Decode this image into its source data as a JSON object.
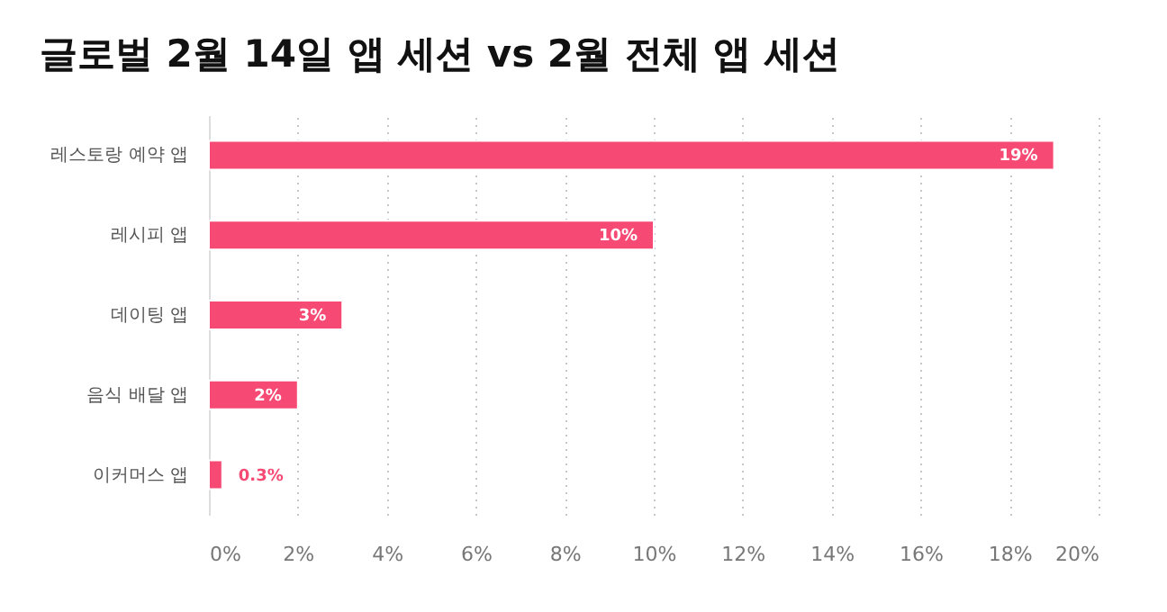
{
  "chart_data": {
    "type": "bar",
    "orientation": "horizontal",
    "title": "글로벌 2월 14일 앱 세션 vs 2월 전체 앱 세션",
    "categories": [
      "레스토랑 예약 앱",
      "레시피 앱",
      "데이팅 앱",
      "음식 배달 앱",
      "이커머스 앱"
    ],
    "values": [
      19,
      10,
      3,
      2,
      0.3
    ],
    "value_labels": [
      "19%",
      "10%",
      "3%",
      "2%",
      "0.3%"
    ],
    "color": "#f64a74",
    "xlim": [
      0,
      20
    ],
    "xticks": [
      {
        "value": 0,
        "label": "0%"
      },
      {
        "value": 2,
        "label": "2%"
      },
      {
        "value": 4,
        "label": "4%"
      },
      {
        "value": 6,
        "label": "6%"
      },
      {
        "value": 8,
        "label": "8%"
      },
      {
        "value": 10,
        "label": "10%"
      },
      {
        "value": 12,
        "label": "12%"
      },
      {
        "value": 14,
        "label": "14%"
      },
      {
        "value": 16,
        "label": "16%"
      },
      {
        "value": 18,
        "label": "18%"
      },
      {
        "value": 20,
        "label": "20%"
      }
    ],
    "grid": "x"
  }
}
